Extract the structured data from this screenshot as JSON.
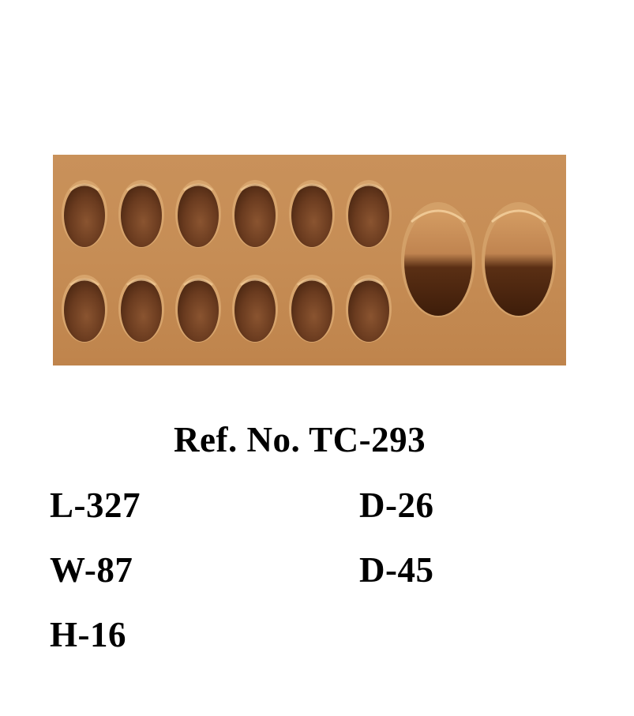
{
  "product": {
    "ref_no": "Ref. No. TC-293",
    "length": "L-327",
    "width": "W-87",
    "height": "H-16",
    "small_cavity_diameter": "D-26",
    "large_cavity_diameter": "D-45"
  },
  "photo": {
    "subject": "chocolate-mould-photo",
    "mould_color": "#c68d55",
    "cavity_color": "#6a3b1f",
    "small_cavity_rows": 2,
    "small_cavity_cols": 6,
    "large_cavity_count": 2
  }
}
